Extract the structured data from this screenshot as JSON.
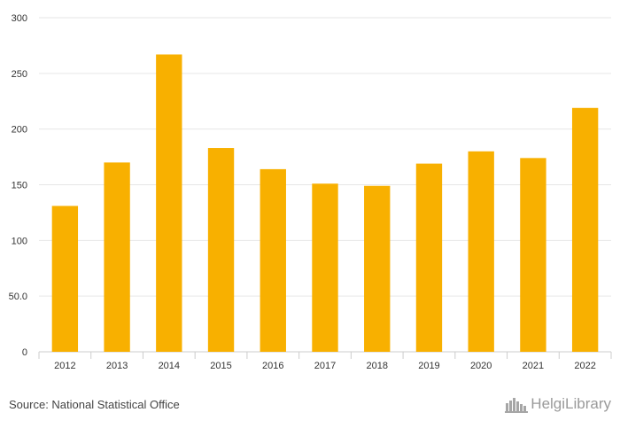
{
  "chart_data": {
    "type": "bar",
    "categories": [
      "2012",
      "2013",
      "2014",
      "2015",
      "2016",
      "2017",
      "2018",
      "2019",
      "2020",
      "2021",
      "2022"
    ],
    "values": [
      131,
      170,
      267,
      183,
      164,
      151,
      149,
      169,
      180,
      174,
      219
    ],
    "ylim": [
      0,
      300
    ],
    "yticks": [
      0,
      50,
      100,
      150,
      200,
      250,
      300
    ],
    "ytick_labels": [
      "0",
      "50.0",
      "100",
      "150",
      "200",
      "250",
      "300"
    ],
    "grid": true,
    "bar_color": "#f8b000",
    "grid_color": "#e6e6e6",
    "axis_color": "#cccccc"
  },
  "footer": {
    "source": "Source: National Statistical Office",
    "brand": "HelgiLibrary"
  },
  "colors": {
    "brand_text": "#9a9a9a",
    "source_text": "#444444"
  },
  "icons": {
    "brand_logo": "buildings-logo-icon"
  }
}
